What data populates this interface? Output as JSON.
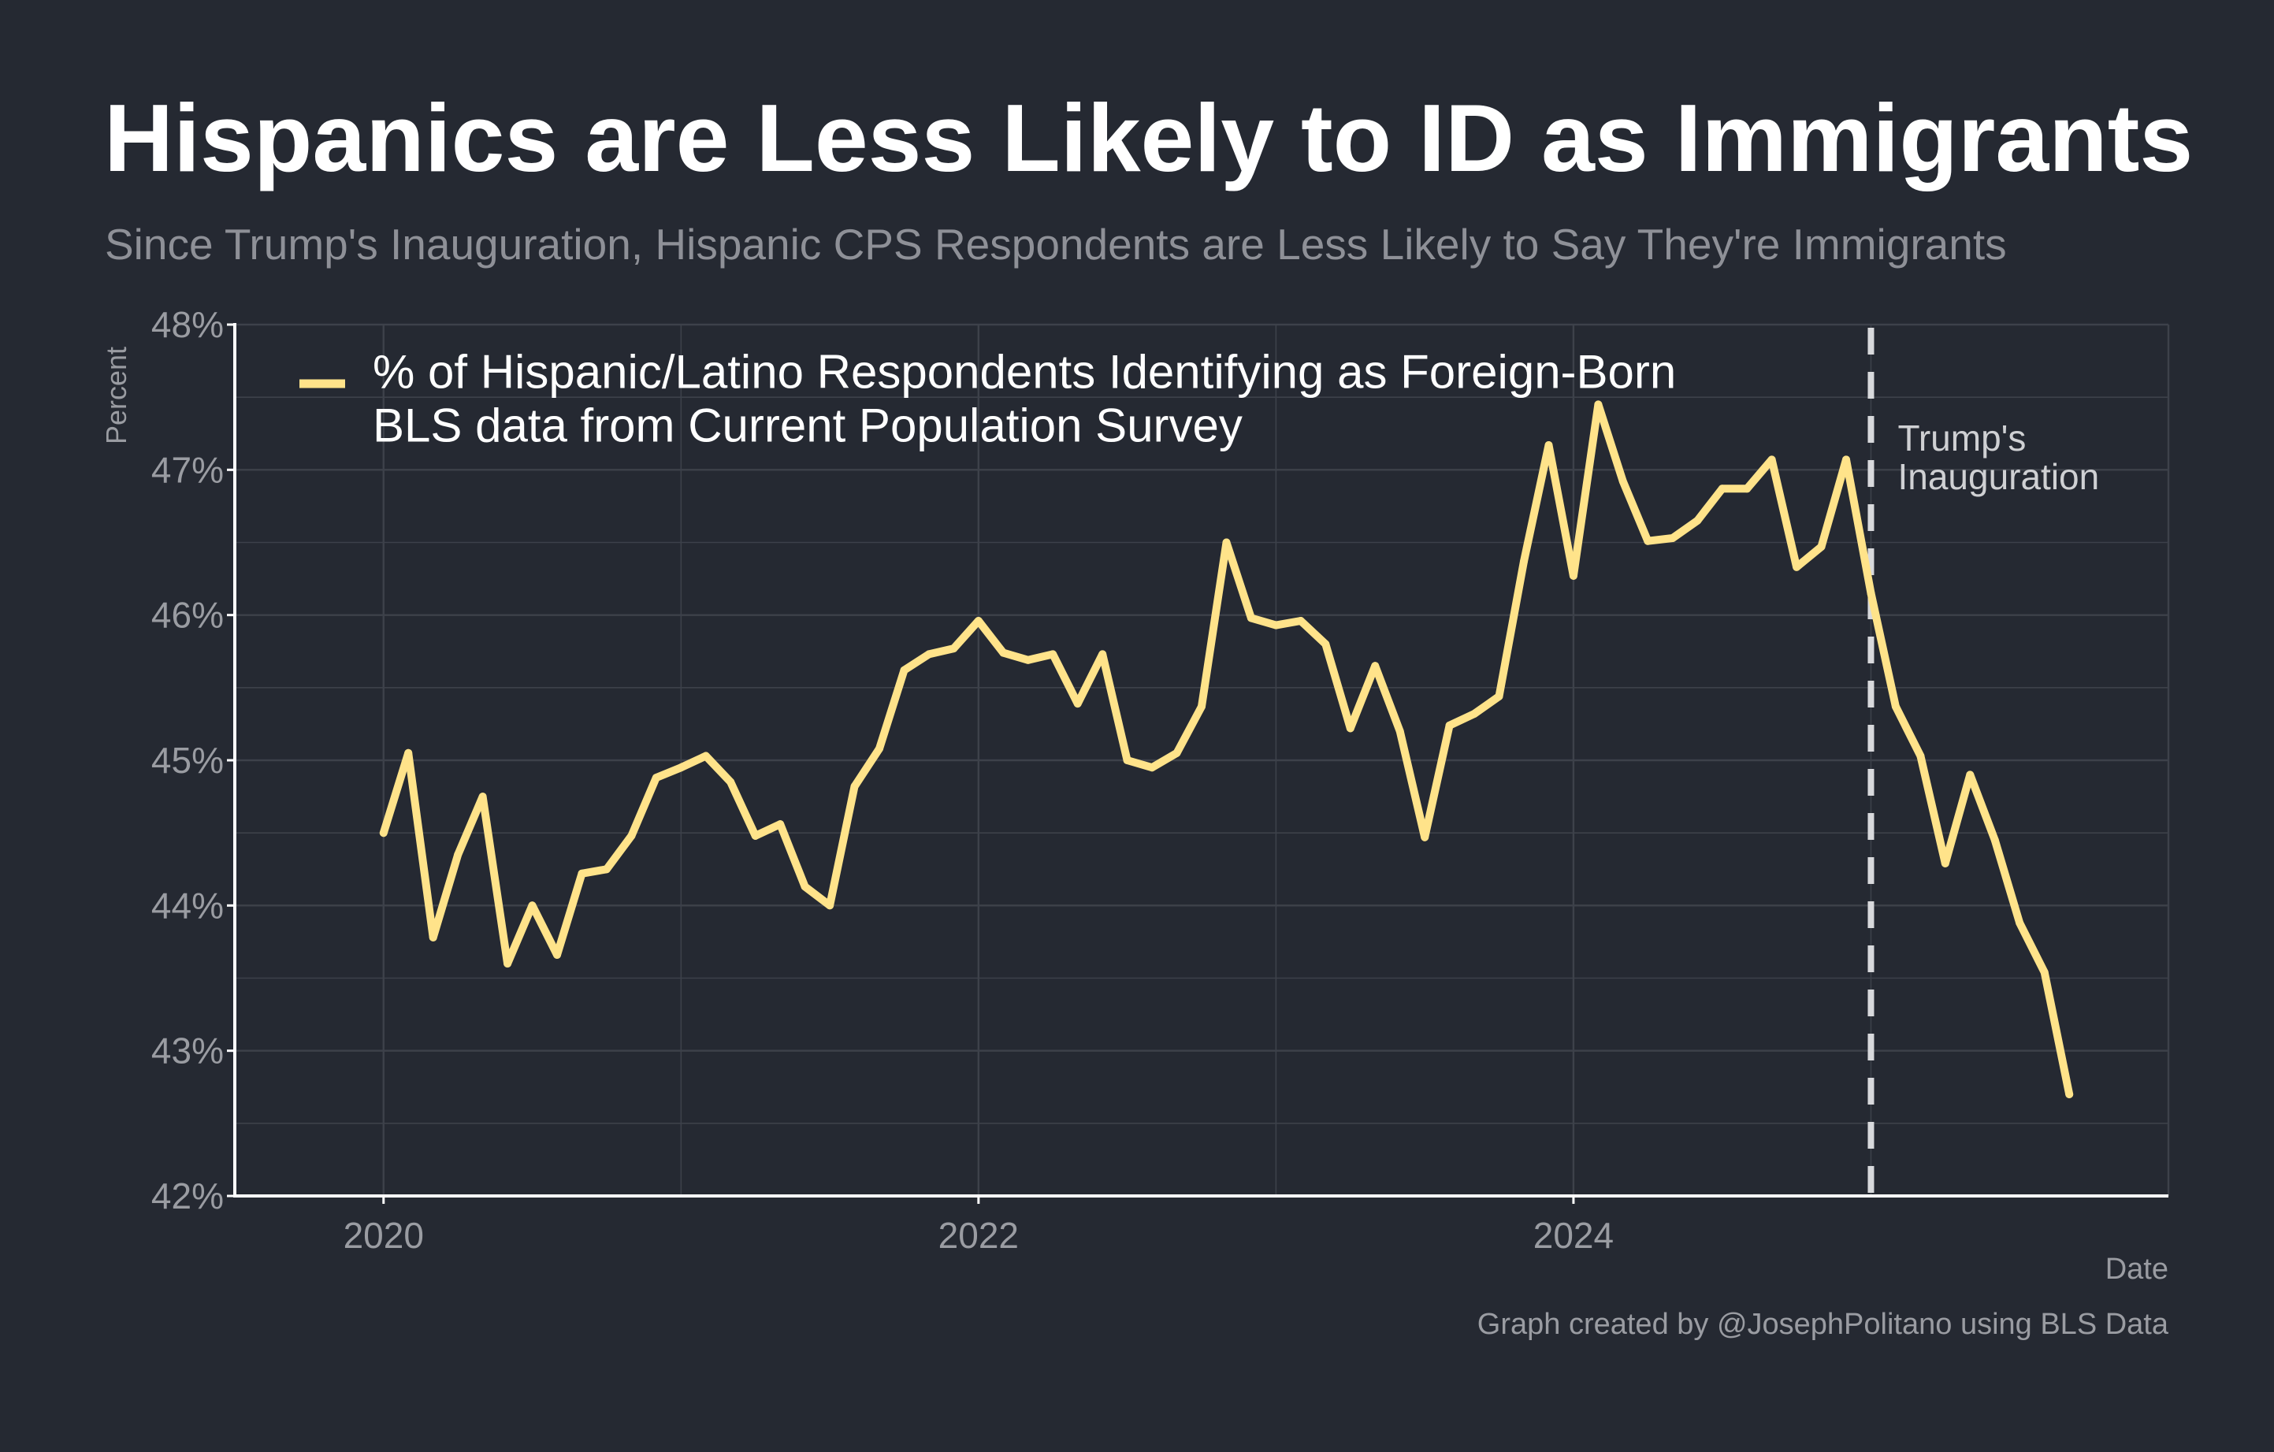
{
  "title": "Hispanics are Less Likely to ID as Immigrants",
  "subtitle": "Since Trump's Inauguration, Hispanic CPS Respondents are Less Likely to Say They're Immigrants",
  "caption": "Graph created by @JosephPolitano using BLS Data",
  "colors": {
    "background": "#252932",
    "line": "#ffe38a",
    "grid": "#3d414a",
    "axis": "#ffffff",
    "tick_text": "#9a9ca2",
    "vline": "#d8d9dc"
  },
  "chart_data": {
    "type": "line",
    "xlabel": "Date",
    "ylabel": "Percent",
    "xlim": [
      "2019-07-01",
      "2026-01-01"
    ],
    "ylim": [
      42,
      48
    ],
    "x_ticks": [
      "2020",
      "2022",
      "2024"
    ],
    "y_ticks": [
      "42%",
      "43%",
      "44%",
      "45%",
      "46%",
      "47%",
      "48%"
    ],
    "grid": true,
    "legend_position": "top-left",
    "legend": [
      "% of Hispanic/Latino Respondents Identifying as Foreign-Born",
      "BLS data from Current Population Survey"
    ],
    "annotation": {
      "date": "2025-01-01",
      "label_lines": [
        "Trump's",
        "Inauguration"
      ]
    },
    "series": [
      {
        "name": "% of Hispanic/Latino Respondents Identifying as Foreign-Born",
        "x": [
          "2020-01",
          "2020-02",
          "2020-03",
          "2020-04",
          "2020-05",
          "2020-06",
          "2020-07",
          "2020-08",
          "2020-09",
          "2020-10",
          "2020-11",
          "2020-12",
          "2021-01",
          "2021-02",
          "2021-03",
          "2021-04",
          "2021-05",
          "2021-06",
          "2021-07",
          "2021-08",
          "2021-09",
          "2021-10",
          "2021-11",
          "2021-12",
          "2022-01",
          "2022-02",
          "2022-03",
          "2022-04",
          "2022-05",
          "2022-06",
          "2022-07",
          "2022-08",
          "2022-09",
          "2022-10",
          "2022-11",
          "2022-12",
          "2023-01",
          "2023-02",
          "2023-03",
          "2023-04",
          "2023-05",
          "2023-06",
          "2023-07",
          "2023-08",
          "2023-09",
          "2023-10",
          "2023-11",
          "2023-12",
          "2024-01",
          "2024-02",
          "2024-03",
          "2024-04",
          "2024-05",
          "2024-06",
          "2024-07",
          "2024-08",
          "2024-09",
          "2024-10",
          "2024-11",
          "2024-12",
          "2025-01",
          "2025-02",
          "2025-03",
          "2025-04",
          "2025-05",
          "2025-06",
          "2025-07",
          "2025-08",
          "2025-09"
        ],
        "values": [
          44.5,
          45.05,
          43.78,
          44.35,
          44.75,
          43.6,
          44.0,
          43.66,
          44.22,
          44.25,
          44.48,
          44.88,
          44.95,
          45.03,
          44.85,
          44.48,
          44.56,
          44.13,
          44.0,
          44.82,
          45.08,
          45.62,
          45.73,
          45.77,
          45.96,
          45.74,
          45.69,
          45.73,
          45.39,
          45.73,
          45.0,
          44.95,
          45.05,
          45.37,
          46.5,
          45.98,
          45.93,
          45.96,
          45.8,
          45.22,
          45.65,
          45.2,
          44.47,
          45.24,
          45.32,
          45.44,
          46.37,
          47.17,
          46.27,
          47.45,
          46.92,
          46.51,
          46.53,
          46.65,
          46.87,
          46.87,
          47.07,
          46.33,
          46.47,
          47.07,
          46.15,
          45.37,
          45.03,
          44.29,
          44.9,
          44.45,
          43.88,
          43.54,
          42.7
        ]
      }
    ]
  }
}
